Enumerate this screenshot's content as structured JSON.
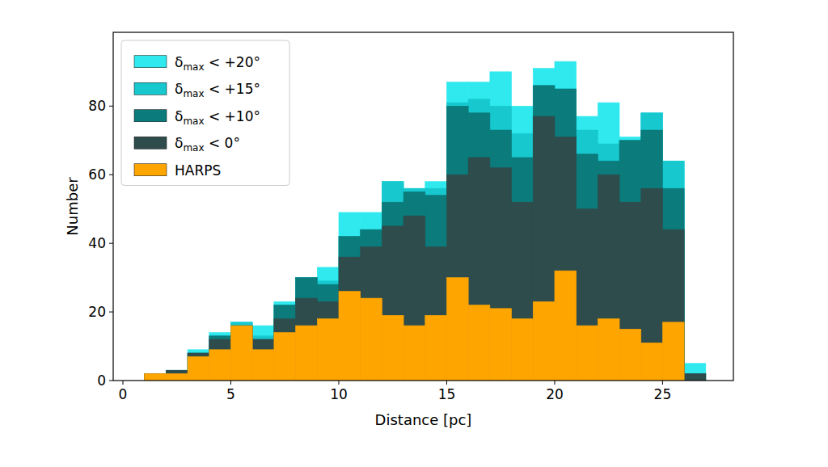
{
  "chart_data": {
    "type": "histogram",
    "x_label": "Distance [pc]",
    "y_label": "Number",
    "bins": [
      1,
      2,
      3,
      4,
      5,
      6,
      7,
      8,
      9,
      10,
      11,
      12,
      13,
      14,
      15,
      16,
      17,
      18,
      19,
      20,
      21,
      22,
      23,
      24,
      25,
      26,
      27
    ],
    "series": [
      {
        "name": "δmax < +20°",
        "color": "#2fe9ef",
        "values": [
          2,
          3,
          9,
          14,
          17,
          16,
          23,
          30,
          33,
          49,
          49,
          58,
          56,
          58,
          87,
          87,
          90,
          80,
          91,
          93,
          77,
          81,
          71,
          78,
          64,
          5
        ]
      },
      {
        "name": "δmax < +15°",
        "color": "#17c8cf",
        "values": [
          2,
          3,
          8,
          13,
          17,
          13,
          22,
          30,
          29,
          42,
          44,
          58,
          56,
          56,
          81,
          82,
          80,
          72,
          86,
          85,
          73,
          69,
          70,
          78,
          64,
          2
        ]
      },
      {
        "name": "δmax < +10°",
        "color": "#0b7b7b",
        "values": [
          2,
          3,
          8,
          13,
          16,
          12,
          22,
          30,
          28,
          42,
          44,
          52,
          55,
          54,
          80,
          78,
          73,
          65,
          86,
          85,
          66,
          64,
          70,
          73,
          56,
          2
        ]
      },
      {
        "name": "δmax < 0°",
        "color": "#2f4c4c",
        "values": [
          2,
          3,
          8,
          12,
          16,
          12,
          18,
          24,
          23,
          36,
          39,
          45,
          48,
          39,
          60,
          65,
          62,
          52,
          77,
          71,
          50,
          60,
          52,
          56,
          44,
          2
        ]
      },
      {
        "name": "HARPS",
        "color": "#ffa500",
        "values": [
          2,
          2,
          7,
          9,
          16,
          9,
          14,
          16,
          18,
          26,
          24,
          19,
          16,
          19,
          30,
          22,
          21,
          18,
          23,
          32,
          16,
          18,
          15,
          11,
          17,
          0
        ]
      }
    ],
    "stacked": false,
    "xlim": [
      -0.45,
      28.28
    ],
    "ylim": [
      0,
      101.5
    ],
    "xticks": [
      0,
      5,
      10,
      15,
      20,
      25
    ],
    "yticks": [
      0,
      20,
      40,
      60,
      80
    ],
    "grid": false,
    "legend": "upper left"
  }
}
